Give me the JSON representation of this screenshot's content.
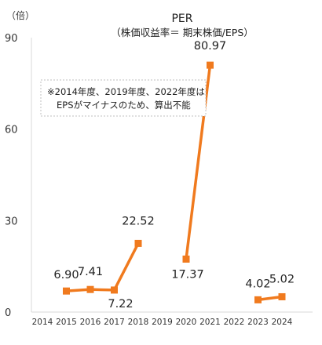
{
  "chart_data": {
    "type": "line",
    "title": "PER",
    "subtitle": "（株価収益率＝ 期末株価/EPS）",
    "ylabel": "（倍）",
    "xlabel": "",
    "ylim": [
      0,
      90
    ],
    "yticks": [
      "0",
      "30",
      "60",
      "90"
    ],
    "ytick_values": [
      0,
      30,
      60,
      90
    ],
    "categories": [
      "2014",
      "2015",
      "2016",
      "2017",
      "2018",
      "2019",
      "2020",
      "2021",
      "2022",
      "2023",
      "2024"
    ],
    "series": [
      {
        "color": "#F07A1E",
        "values": [
          null,
          6.9,
          7.41,
          7.22,
          22.52,
          null,
          17.37,
          80.97,
          null,
          4.02,
          5.02
        ]
      }
    ],
    "data_labels": [
      "",
      "6.90",
      "7.41",
      "7.22",
      "22.52",
      "",
      "17.37",
      "80.97",
      "",
      "4.02",
      "5.02"
    ],
    "annotation": {
      "line1": "※2014年度、2019年度、2022年度は",
      "line2": "EPSがマイナスのため、算出不能"
    },
    "grid": false
  }
}
